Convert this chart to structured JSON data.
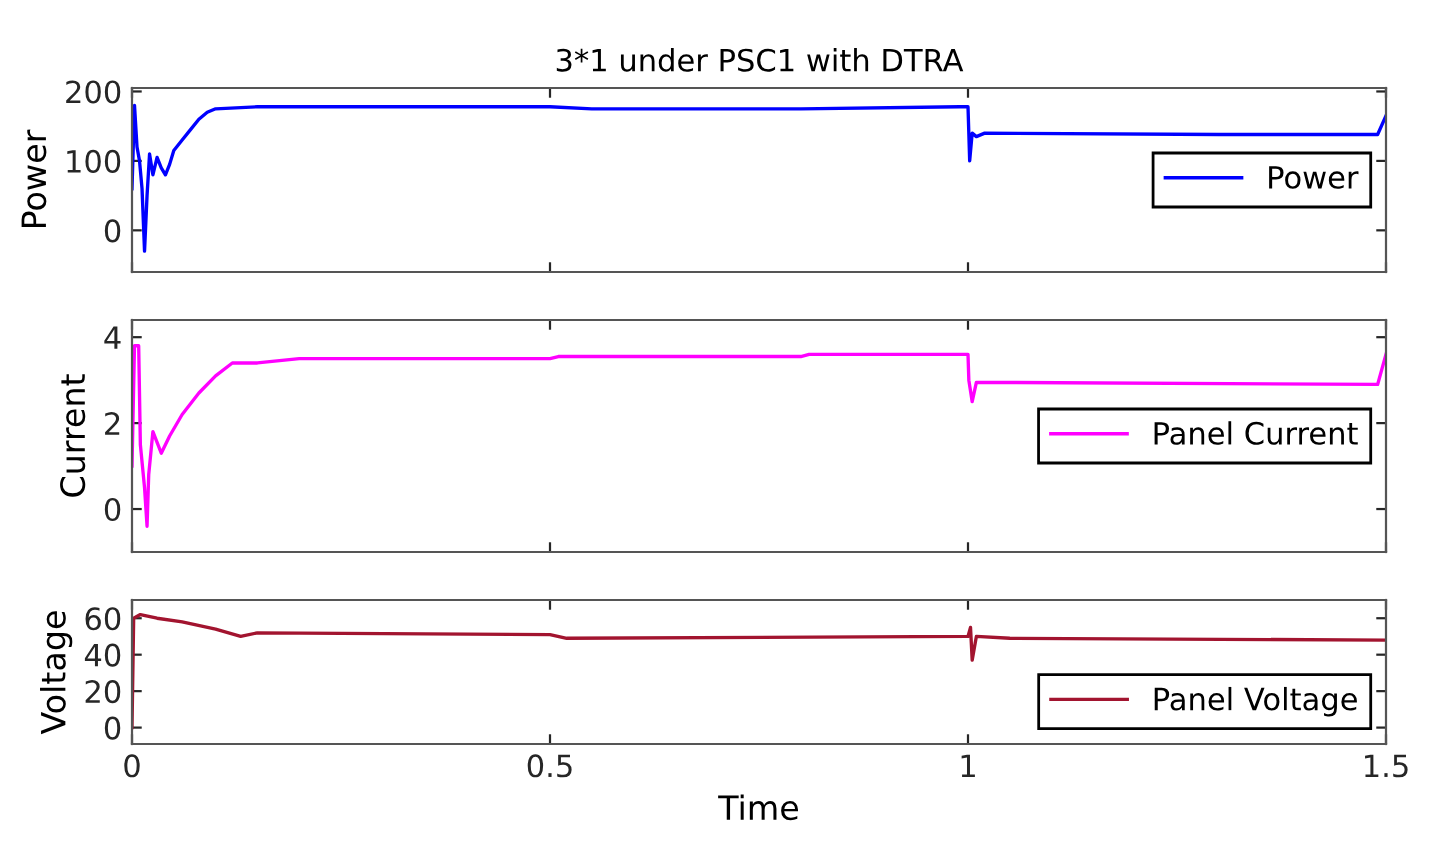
{
  "chart_data": [
    {
      "type": "line",
      "title": "3*1 under PSC1 with DTRA",
      "ylabel": "Power",
      "xlim": [
        0,
        1.5
      ],
      "xticks": [
        0,
        0.5,
        1,
        1.5
      ],
      "ylim": [
        -60,
        205
      ],
      "yticks": [
        0,
        100,
        200
      ],
      "tick_labels": "y",
      "legend": "right",
      "grid": false,
      "series": [
        {
          "name": "Power",
          "color": "#0000ff",
          "x": [
            0,
            0.003,
            0.006,
            0.009,
            0.012,
            0.015,
            0.018,
            0.021,
            0.025,
            0.03,
            0.035,
            0.04,
            0.045,
            0.05,
            0.06,
            0.07,
            0.08,
            0.09,
            0.1,
            0.15,
            0.5,
            0.55,
            0.8,
            0.99,
            1.0,
            1.002,
            1.005,
            1.01,
            1.02,
            1.3,
            1.49,
            1.5
          ],
          "values": [
            60,
            180,
            120,
            100,
            60,
            -30,
            50,
            110,
            80,
            105,
            90,
            80,
            95,
            115,
            130,
            145,
            160,
            170,
            175,
            178,
            178,
            175,
            175,
            178,
            178,
            100,
            140,
            135,
            140,
            138,
            138,
            165
          ]
        }
      ]
    },
    {
      "type": "line",
      "ylabel": "Current",
      "xlim": [
        0,
        1.5
      ],
      "xticks": [
        0,
        0.5,
        1,
        1.5
      ],
      "ylim": [
        -1,
        4.4
      ],
      "yticks": [
        0,
        2,
        4
      ],
      "tick_labels": "y",
      "legend": "right",
      "grid": false,
      "series": [
        {
          "name": "Panel Current",
          "color": "#ff00ff",
          "x": [
            0,
            0.003,
            0.008,
            0.01,
            0.015,
            0.018,
            0.02,
            0.025,
            0.035,
            0.045,
            0.06,
            0.08,
            0.1,
            0.12,
            0.15,
            0.2,
            0.5,
            0.51,
            0.8,
            0.81,
            0.99,
            1.0,
            1.001,
            1.005,
            1.01,
            1.49,
            1.5
          ],
          "values": [
            1,
            3.8,
            3.8,
            1.5,
            0.5,
            -0.4,
            0.8,
            1.8,
            1.3,
            1.7,
            2.2,
            2.7,
            3.1,
            3.4,
            3.4,
            3.5,
            3.5,
            3.55,
            3.55,
            3.6,
            3.6,
            3.6,
            3.0,
            2.5,
            2.95,
            2.9,
            3.6
          ]
        }
      ]
    },
    {
      "type": "line",
      "ylabel": "Voltage",
      "xlabel": "Time",
      "xlim": [
        0,
        1.5
      ],
      "xticks": [
        0,
        0.5,
        1,
        1.5
      ],
      "ylim": [
        -9,
        70
      ],
      "yticks": [
        0,
        20,
        40,
        60
      ],
      "legend": "bottom right",
      "grid": false,
      "series": [
        {
          "name": "Panel Voltage",
          "color": "#a2142f",
          "x": [
            0,
            0.002,
            0.01,
            0.03,
            0.06,
            0.1,
            0.13,
            0.15,
            0.5,
            0.52,
            1.0,
            1.003,
            1.005,
            1.01,
            1.05,
            1.5
          ],
          "values": [
            0,
            60,
            62,
            60,
            58,
            54,
            50,
            52,
            51,
            49,
            50,
            55,
            37,
            50,
            49,
            48
          ]
        }
      ]
    }
  ]
}
